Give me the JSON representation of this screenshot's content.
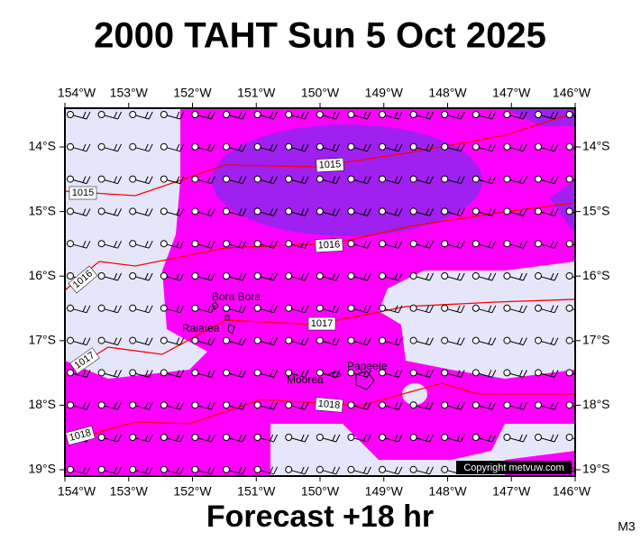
{
  "title": "2000 TAHT Sun 5 Oct 2025",
  "footer": "Forecast +18 hr",
  "model": "M3",
  "copyright": "Copyright metvuw.com",
  "longitude_labels": [
    "154°W",
    "153°W",
    "152°W",
    "151°W",
    "150°W",
    "149°W",
    "148°W",
    "147°W",
    "146°W"
  ],
  "latitude_labels": [
    "14°S",
    "15°S",
    "16°S",
    "17°S",
    "18°S",
    "19°S"
  ],
  "isobar_labels": [
    "1015",
    "1015",
    "1016",
    "1016",
    "1017",
    "1017",
    "1018",
    "1018"
  ],
  "places": [
    "Bora Bora",
    "Raiatea",
    "Moorea",
    "Papeete"
  ]
}
